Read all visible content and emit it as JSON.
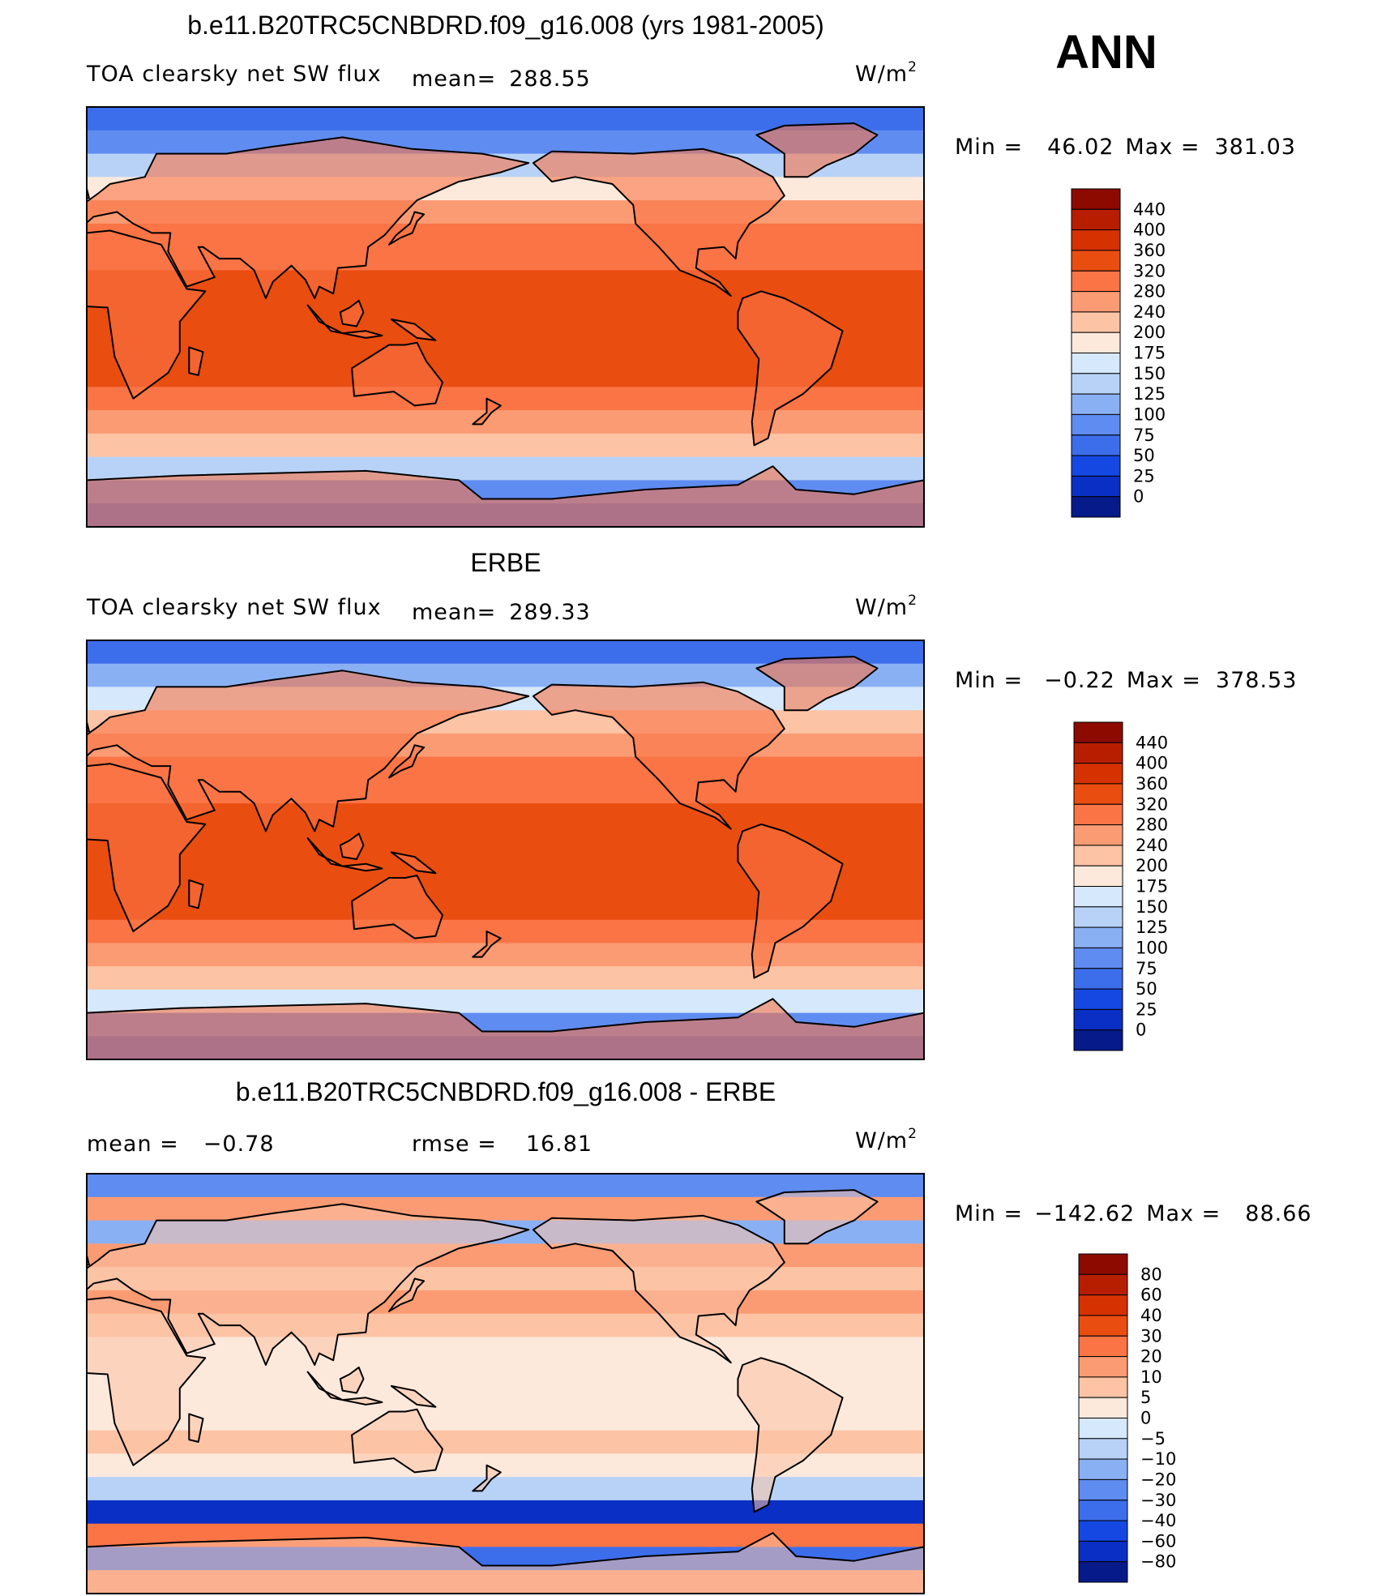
{
  "season": "ANN",
  "units": {
    "base": "W/m",
    "exponent": "2"
  },
  "chart_data": [
    {
      "type": "heatmap",
      "panel": "model",
      "title": "b.e11.B20TRC5CNBDRD.f09_g16.008 (yrs 1981-2005)",
      "variable": "TOA clearsky net SW flux",
      "mean_label": "mean=",
      "mean": "288.55",
      "min_label": "Min =",
      "min": "46.02",
      "max_label": "Max =",
      "max": "381.03",
      "levels": [
        "440",
        "400",
        "360",
        "320",
        "280",
        "240",
        "200",
        "175",
        "150",
        "125",
        "100",
        "75",
        "50",
        "25",
        "0"
      ],
      "colors": [
        "#8c0a00",
        "#b71e00",
        "#d63100",
        "#ea4d10",
        "#fa7446",
        "#fb9b73",
        "#fcc3a5",
        "#fde9dc",
        "#d6e8fb",
        "#b8d2f7",
        "#8ab0f4",
        "#5f8cf0",
        "#3c6eec",
        "#1548e3",
        "#0a2fc4",
        "#061a8a"
      ],
      "profile": [
        70,
        95,
        140,
        190,
        240,
        280,
        310,
        330,
        350,
        355,
        350,
        330,
        300,
        260,
        200,
        140,
        80,
        55
      ],
      "range": [
        0,
        440
      ]
    },
    {
      "type": "heatmap",
      "panel": "obs",
      "title": "ERBE",
      "variable": "TOA clearsky net SW flux",
      "mean_label": "mean=",
      "mean": "289.33",
      "min_label": "Min =",
      "min": "−0.22",
      "max_label": "Max =",
      "max": "378.53",
      "levels": [
        "440",
        "400",
        "360",
        "320",
        "280",
        "240",
        "200",
        "175",
        "150",
        "125",
        "100",
        "75",
        "50",
        "25",
        "0"
      ],
      "colors": [
        "#8c0a00",
        "#b71e00",
        "#d63100",
        "#ea4d10",
        "#fa7446",
        "#fb9b73",
        "#fcc3a5",
        "#fde9dc",
        "#d6e8fb",
        "#b8d2f7",
        "#8ab0f4",
        "#5f8cf0",
        "#3c6eec",
        "#1548e3",
        "#0a2fc4",
        "#061a8a"
      ],
      "profile": [
        60,
        100,
        160,
        210,
        250,
        285,
        312,
        335,
        352,
        356,
        350,
        332,
        300,
        262,
        215,
        170,
        90,
        50
      ],
      "range": [
        0,
        440
      ]
    },
    {
      "type": "heatmap",
      "panel": "difference",
      "title": "b.e11.B20TRC5CNBDRD.f09_g16.008 - ERBE",
      "mean_label": "mean =",
      "mean": "−0.78",
      "rmse_label": "rmse =",
      "rmse": "16.81",
      "min_label": "Min =",
      "min": "−142.62",
      "max_label": "Max =",
      "max": "88.66",
      "levels": [
        "80",
        "60",
        "40",
        "30",
        "20",
        "10",
        "5",
        "0",
        "−5",
        "−10",
        "−20",
        "−30",
        "−40",
        "−60",
        "−80"
      ],
      "colors": [
        "#8c0a00",
        "#b71e00",
        "#d63100",
        "#ea4d10",
        "#fa7446",
        "#fb9b73",
        "#fcc3a5",
        "#fde9dc",
        "#d6e8fb",
        "#b8d2f7",
        "#8ab0f4",
        "#5f8cf0",
        "#3c6eec",
        "#1548e3",
        "#0a2fc4",
        "#061a8a"
      ],
      "profile": [
        -30,
        10,
        -20,
        15,
        8,
        12,
        6,
        3,
        4,
        3,
        4,
        6,
        3,
        -8,
        -70,
        20,
        -40,
        10
      ],
      "range": [
        -80,
        80
      ]
    }
  ]
}
